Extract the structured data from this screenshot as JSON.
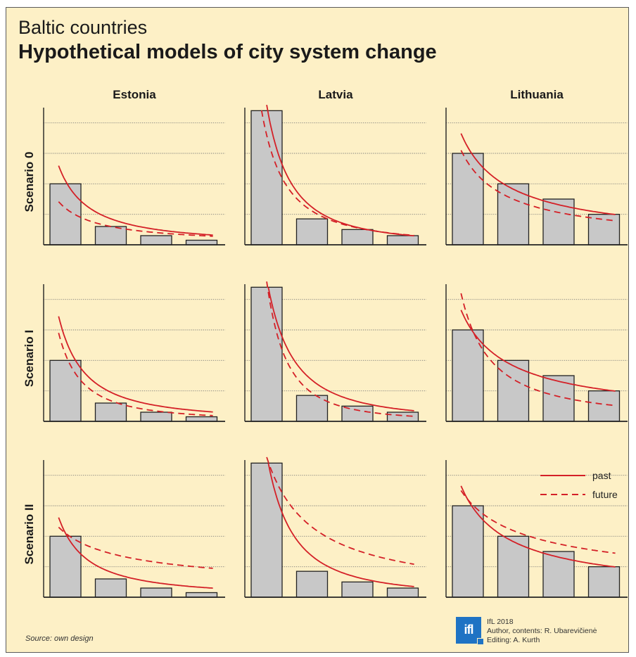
{
  "header": {
    "subtitle": "Baltic countries",
    "title": "Hypothetical models of city system change"
  },
  "footer": {
    "source": "Source: own design",
    "logo_text": "ifl",
    "credit_lines": [
      "IfL 2018",
      "Author, contents: R. Ubarevičienė",
      "Editing: A. Kurth"
    ]
  },
  "colors": {
    "background": "#fdf0c6",
    "bar_fill": "#c8c8c8",
    "bar_stroke": "#222222",
    "curve": "#d42027",
    "gridline": "#777777",
    "logo": "#1f73c4"
  },
  "chart_data": {
    "type": "bar",
    "columns": [
      "Estonia",
      "Latvia",
      "Lithuania"
    ],
    "rows": [
      "Scenario 0",
      "Scenario I",
      "Scenario II"
    ],
    "legend": {
      "position": "top-right",
      "past_label": "past",
      "future_label": "future"
    },
    "ylim": [
      0,
      4.5
    ],
    "grid": true,
    "panels": [
      {
        "row": "Scenario 0",
        "column": "Estonia",
        "bars": [
          2,
          0.6,
          0.3,
          0.15
        ],
        "past": {
          "a": 2.1,
          "b": 1.3
        },
        "future": {
          "a": 1.2,
          "b": 1.0
        }
      },
      {
        "row": "Scenario 0",
        "column": "Latvia",
        "bars": [
          4.4,
          0.85,
          0.5,
          0.3
        ],
        "past": {
          "a": 4.6,
          "b": 1.9
        },
        "future": {
          "a": 3.6,
          "b": 1.7
        }
      },
      {
        "row": "Scenario 0",
        "column": "Lithuania",
        "bars": [
          3,
          2,
          1.5,
          1
        ],
        "past": {
          "a": 3.2,
          "b": 0.81
        },
        "future": {
          "a": 2.7,
          "b": 0.85
        }
      },
      {
        "row": "Scenario I",
        "column": "Estonia",
        "bars": [
          2,
          0.6,
          0.3,
          0.15
        ],
        "past": {
          "a": 2.7,
          "b": 1.5
        },
        "future": {
          "a": 2.2,
          "b": 1.7
        }
      },
      {
        "row": "Scenario I",
        "column": "Latvia",
        "bars": [
          4.4,
          0.85,
          0.5,
          0.3
        ],
        "past": {
          "a": 4.7,
          "b": 1.8
        },
        "future": {
          "a": 4.6,
          "b": 2.3
        }
      },
      {
        "row": "Scenario I",
        "column": "Lithuania",
        "bars": [
          3,
          2,
          1.5,
          1
        ],
        "past": {
          "a": 3.2,
          "b": 0.81
        },
        "future": {
          "a": 3.4,
          "b": 1.3
        }
      },
      {
        "row": "Scenario II",
        "column": "Estonia",
        "bars": [
          2,
          0.6,
          0.3,
          0.15
        ],
        "past": {
          "a": 2.1,
          "b": 1.35
        },
        "future": {
          "a": 2.1,
          "b": 0.55
        }
      },
      {
        "row": "Scenario II",
        "column": "Latvia",
        "bars": [
          4.4,
          0.85,
          0.5,
          0.3
        ],
        "past": {
          "a": 4.7,
          "b": 1.8
        },
        "future": {
          "a": 4.6,
          "b": 1.0
        }
      },
      {
        "row": "Scenario II",
        "column": "Lithuania",
        "bars": [
          3,
          2,
          1.5,
          1
        ],
        "past": {
          "a": 3.2,
          "b": 0.81
        },
        "future": {
          "a": 3.2,
          "b": 0.55
        }
      }
    ]
  }
}
